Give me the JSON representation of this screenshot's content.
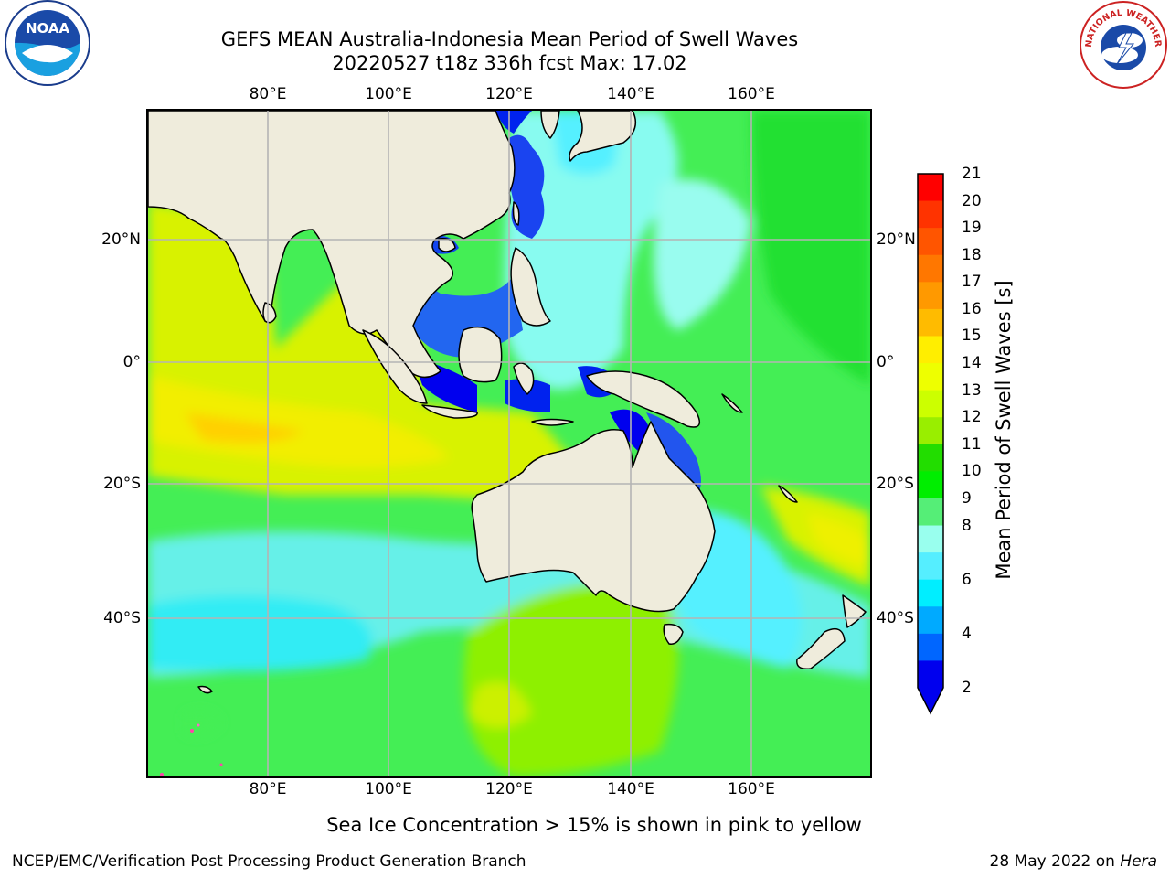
{
  "title": {
    "line1": "GEFS MEAN Australia-Indonesia Mean Period of Swell Waves",
    "line2": "20220527 t18z 336h fcst   Max: 17.02"
  },
  "map": {
    "lon_labels": [
      "80°E",
      "100°E",
      "120°E",
      "140°E",
      "160°E"
    ],
    "lat_labels": [
      "20°N",
      "0°",
      "20°S",
      "40°S"
    ],
    "ocean_color": "#44ee55",
    "land_color": "#efecdc"
  },
  "colorbar": {
    "label": "Mean Period of Swell Waves [s]",
    "ticks": [
      "21",
      "20",
      "19",
      "18",
      "17",
      "16",
      "15",
      "14",
      "13",
      "12",
      "11",
      "10",
      "9",
      "8",
      "6",
      "4",
      "2"
    ],
    "colors": [
      "#ff0000",
      "#ff3300",
      "#ff5500",
      "#ff7700",
      "#ff9900",
      "#ffbb00",
      "#ffee00",
      "#eeff00",
      "#ccff00",
      "#99ee00",
      "#22dd00",
      "#00ee00",
      "#55ee77",
      "#99ffee",
      "#55eeff",
      "#00eeff",
      "#00aaff",
      "#0066ff",
      "#0000ee"
    ],
    "extend_color": "#0000ee"
  },
  "logos": {
    "noaa_text": "NOAA",
    "nws_text": "NATIONAL WEATHER SERVICE"
  },
  "footer": {
    "note": "Sea Ice Concentration > 15% is shown in pink to yellow",
    "credit": "NCEP/EMC/Verification Post Processing Product Generation Branch",
    "date": "28 May 2022 on",
    "machine": "Hera"
  }
}
